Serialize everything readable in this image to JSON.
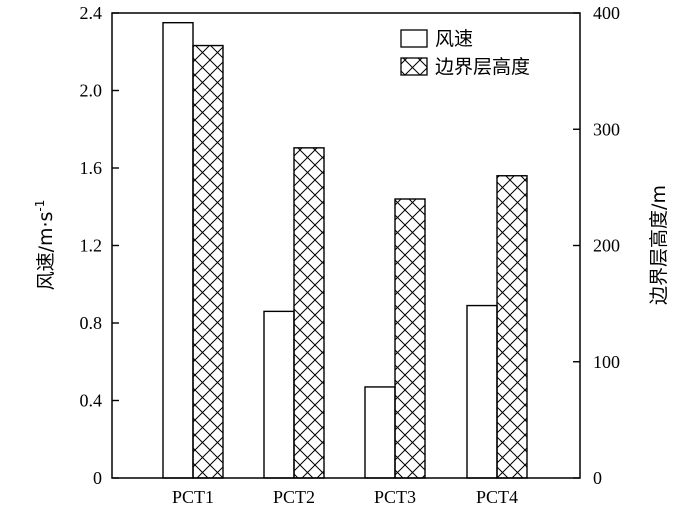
{
  "chart_data": {
    "type": "bar",
    "categories": [
      "PCT1",
      "PCT2",
      "PCT3",
      "PCT4"
    ],
    "series": [
      {
        "name": "风速",
        "axis": "left",
        "pattern": "none",
        "values": [
          2.35,
          0.86,
          0.47,
          0.89
        ]
      },
      {
        "name": "边界层高度",
        "axis": "right",
        "pattern": "cross-hatch",
        "values": [
          372,
          284,
          240,
          260
        ]
      }
    ],
    "left_axis": {
      "label": "风速/m·s",
      "label_superscript": "-1",
      "ylim": [
        0,
        2.4
      ],
      "ticks": [
        "0",
        "0.4",
        "0.8",
        "1.2",
        "1.6",
        "2.0",
        "2.4"
      ]
    },
    "right_axis": {
      "label": "边界层高度/m",
      "ylim": [
        0,
        400
      ],
      "ticks": [
        "0",
        "100",
        "200",
        "300",
        "400"
      ]
    },
    "title": "",
    "xlabel": "",
    "grid": false,
    "legend_position": "top-right",
    "colors": {
      "bar_fill": "#ffffff",
      "stroke": "#000000"
    }
  }
}
